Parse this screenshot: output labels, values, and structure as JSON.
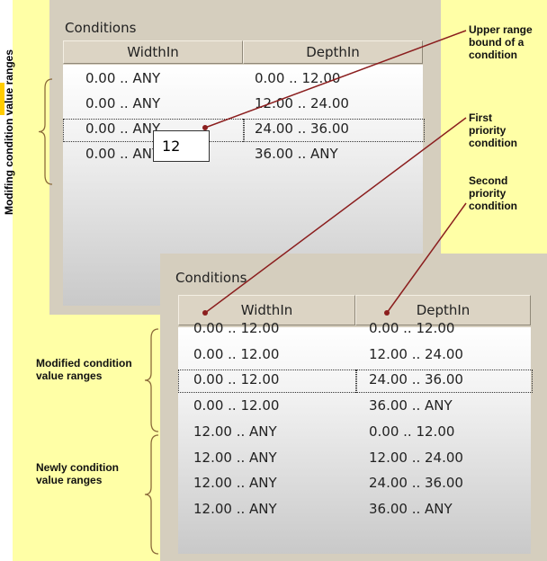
{
  "side_label": "Modifing condition value ranges",
  "panels": [
    {
      "title": "Conditions",
      "columns": [
        "WidthIn",
        "DepthIn"
      ],
      "rows": [
        [
          "0.00 .. ANY",
          "0.00 .. 12.00"
        ],
        [
          "0.00 .. ANY",
          "12.00 .. 24.00"
        ],
        [
          "0.00 .. ANY",
          "24.00 .. 36.00"
        ],
        [
          "0.00 .. ANY",
          "36.00 .. ANY"
        ]
      ],
      "editor": "12"
    },
    {
      "title": "Conditions",
      "columns": [
        "WidthIn",
        "DepthIn"
      ],
      "rows": [
        [
          "0.00 .. 12.00",
          "0.00 .. 12.00"
        ],
        [
          "0.00 .. 12.00",
          "12.00 .. 24.00"
        ],
        [
          "0.00 .. 12.00",
          "24.00 .. 36.00"
        ],
        [
          "0.00 .. 12.00",
          "36.00 .. ANY"
        ],
        [
          "12.00 .. ANY",
          "0.00 .. 12.00"
        ],
        [
          "12.00 .. ANY",
          "12.00 .. 24.00"
        ],
        [
          "12.00 .. ANY",
          "24.00 .. 36.00"
        ],
        [
          "12.00 .. ANY",
          "36.00 .. ANY"
        ]
      ]
    }
  ],
  "callouts": [
    "Upper range bound of a condition",
    "First priority condition",
    "Second priority condition"
  ],
  "group_labels": [
    "Modified condition value ranges",
    "Newly condition value ranges"
  ]
}
